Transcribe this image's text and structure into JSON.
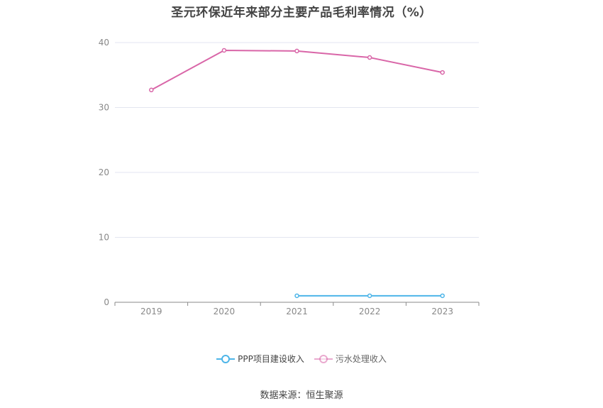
{
  "chart_data": {
    "type": "line",
    "title": "圣元环保近年来部分主要产品毛利率情况（%）",
    "categories": [
      "2019",
      "2020",
      "2021",
      "2022",
      "2023"
    ],
    "ylim": [
      0,
      40
    ],
    "yticks": [
      0,
      10,
      20,
      30,
      40
    ],
    "grid": true,
    "legend_position": "bottom",
    "series": [
      {
        "name": "PPP项目建设收入",
        "color": "#4db5e8",
        "values": [
          null,
          null,
          1.0,
          1.0,
          1.0
        ]
      },
      {
        "name": "污水处理收入",
        "color": "#d966a8",
        "values": [
          32.7,
          38.8,
          38.7,
          37.7,
          35.4
        ]
      }
    ]
  },
  "source_note": "数据来源：恒生聚源"
}
